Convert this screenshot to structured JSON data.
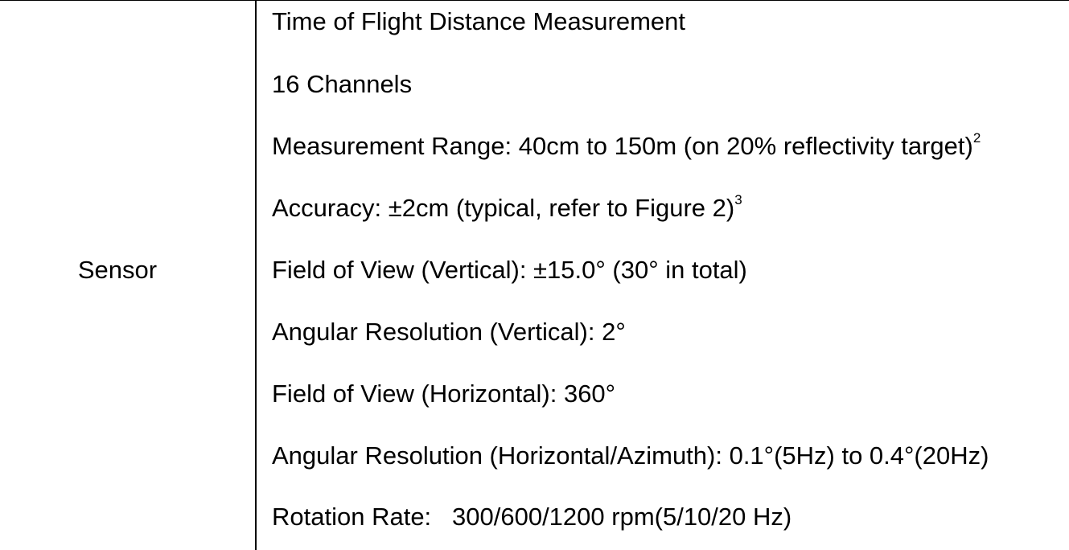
{
  "table": {
    "row_label": "Sensor",
    "lines": [
      {
        "text": "Time of Flight Distance Measurement",
        "sup": ""
      },
      {
        "text": "16 Channels",
        "sup": ""
      },
      {
        "text": "Measurement Range: 40cm to 150m (on 20% reflectivity target)",
        "sup": "2"
      },
      {
        "text": "Accuracy: ±2cm (typical, refer to Figure 2)",
        "sup": "3"
      },
      {
        "text": "Field of View (Vertical): ±15.0° (30° in total)",
        "sup": ""
      },
      {
        "text": "Angular Resolution (Vertical): 2°",
        "sup": ""
      },
      {
        "text": "Field of View (Horizontal): 360°",
        "sup": ""
      },
      {
        "text": "Angular Resolution (Horizontal/Azimuth): 0.1°(5Hz) to 0.4°(20Hz)",
        "sup": ""
      },
      {
        "text": "Rotation Rate:   300/600/1200 rpm(5/10/20 Hz)",
        "sup": ""
      }
    ]
  }
}
